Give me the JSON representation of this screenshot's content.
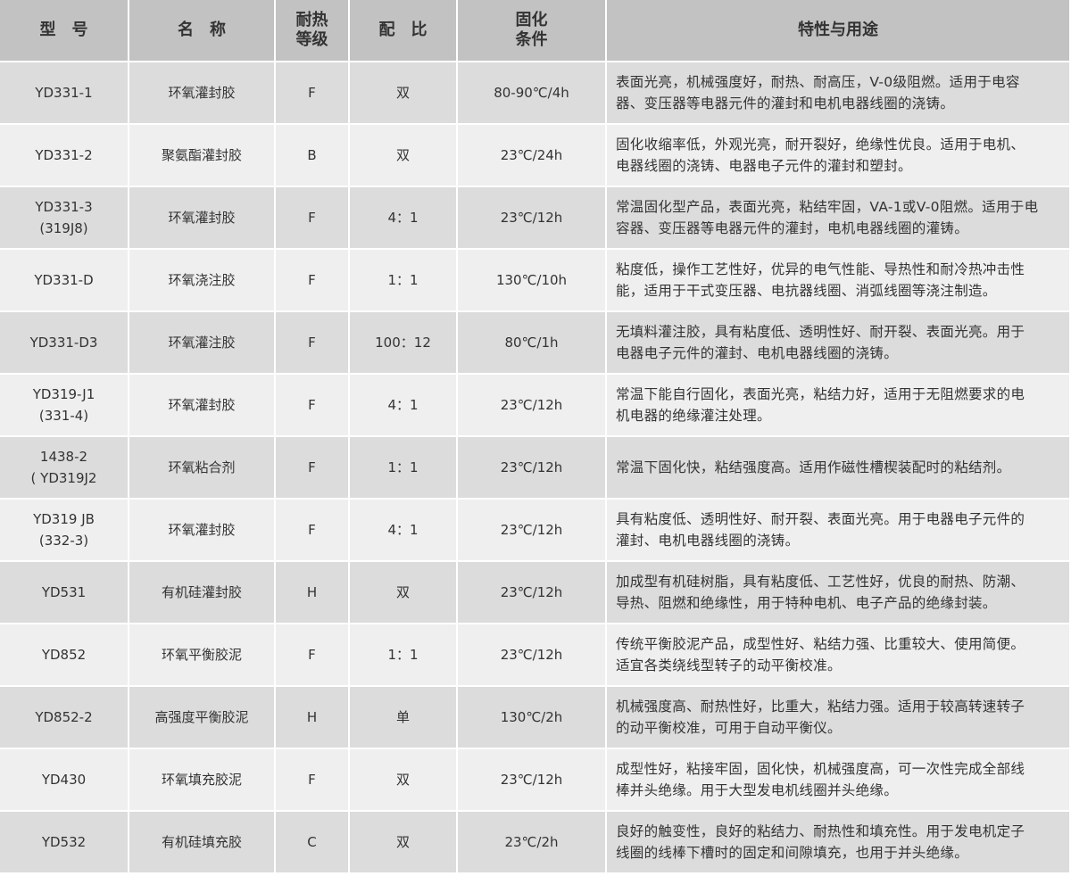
{
  "headers": [
    "型　号",
    "名　称",
    "耐热\n等级",
    "配　比",
    "固化\n条件",
    "特性与用途"
  ],
  "rows": [
    [
      "YD331-1",
      "环氧灌封胶",
      "F",
      "双",
      "80-90℃/4h",
      "表面光亮，机械强度好，耐热、耐高压，V-0级阻燃。适用于电容\n器、变压器等电器元件的灌封和电机电器线圈的浇铸。"
    ],
    [
      "YD331-2",
      "聚氨酯灌封胶",
      "B",
      "双",
      "23℃/24h",
      "固化收缩率低，外观光亮，耐开裂好，绝缘性优良。适用于电机、\n电器线圈的浇铸、电器电子元件的灌封和塑封。"
    ],
    [
      "YD331-3\n(319J8)",
      "环氧灌封胶",
      "F",
      "4：1",
      "23℃/12h",
      "常温固化型产品，表面光亮，粘结牢固，VA-1或V-0阻燃。适用于电\n容器、变压器等电器元件的灌封，电机电器线圈的灌铸。"
    ],
    [
      "YD331-D",
      "环氧浇注胶",
      "F",
      "1：1",
      "130℃/10h",
      "粘度低，操作工艺性好，优异的电气性能、导热性和耐冷热冲击性\n能，适用于干式变压器、电抗器线圈、消弧线圈等浇注制造。"
    ],
    [
      "YD331-D3",
      "环氧灌注胶",
      "F",
      "100：12",
      "80℃/1h",
      "无填料灌注胶，具有粘度低、透明性好、耐开裂、表面光亮。用于\n电器电子元件的灌封、电机电器线圈的浇铸。"
    ],
    [
      "YD319-J1\n(331-4)",
      "环氧灌封胶",
      "F",
      "4：1",
      "23℃/12h",
      "常温下能自行固化，表面光亮，粘结力好，适用于无阻燃要求的电\n机电器的绝缘灌注处理。"
    ],
    [
      "1438-2\n( YD319J2",
      "环氧粘合剂",
      "F",
      "1：1",
      "23℃/12h",
      "常温下固化快，粘结强度高。适用作磁性槽楔装配时的粘结剂。"
    ],
    [
      "YD319 JB\n(332-3)",
      "环氧灌封胶",
      "F",
      "4：1",
      "23℃/12h",
      "具有粘度低、透明性好、耐开裂、表面光亮。用于电器电子元件的\n灌封、电机电器线圈的浇铸。"
    ],
    [
      "YD531",
      "有机硅灌封胶",
      "H",
      "双",
      "23℃/12h",
      "加成型有机硅树脂，具有粘度低、工艺性好，优良的耐热、防潮、\n导热、阻燃和绝缘性，用于特种电机、电子产品的绝缘封装。"
    ],
    [
      "YD852",
      "环氧平衡胶泥",
      "F",
      "1：1",
      "23℃/12h",
      "传统平衡胶泥产品，成型性好、粘结力强、比重较大、使用简便。\n适宜各类绕线型转子的动平衡校准。"
    ],
    [
      "YD852-2",
      "高强度平衡胶泥",
      "H",
      "单",
      "130℃/2h",
      "机械强度高、耐热性好，比重大，粘结力强。适用于较高转速转子\n的动平衡校准，可用于自动平衡仪。"
    ],
    [
      "YD430",
      "环氧填充胶泥",
      "F",
      "双",
      "23℃/12h",
      "成型性好，粘接牢固，固化快，机械强度高，可一次性完成全部线\n棒并头绝缘。用于大型发电机线圈并头绝缘。"
    ],
    [
      "YD532",
      "有机硅填充胶",
      "C",
      "双",
      "23℃/2h",
      "良好的触变性，良好的粘结力、耐热性和填充性。用于发电机定子\n线圈的线棒下槽时的固定和间隙填充，也用于并头绝缘。"
    ]
  ],
  "colors": {
    "header_bg": "#c2c2c2",
    "row_dark": "#dcdcdc",
    "row_light": "#efefef",
    "text": "#333333"
  }
}
